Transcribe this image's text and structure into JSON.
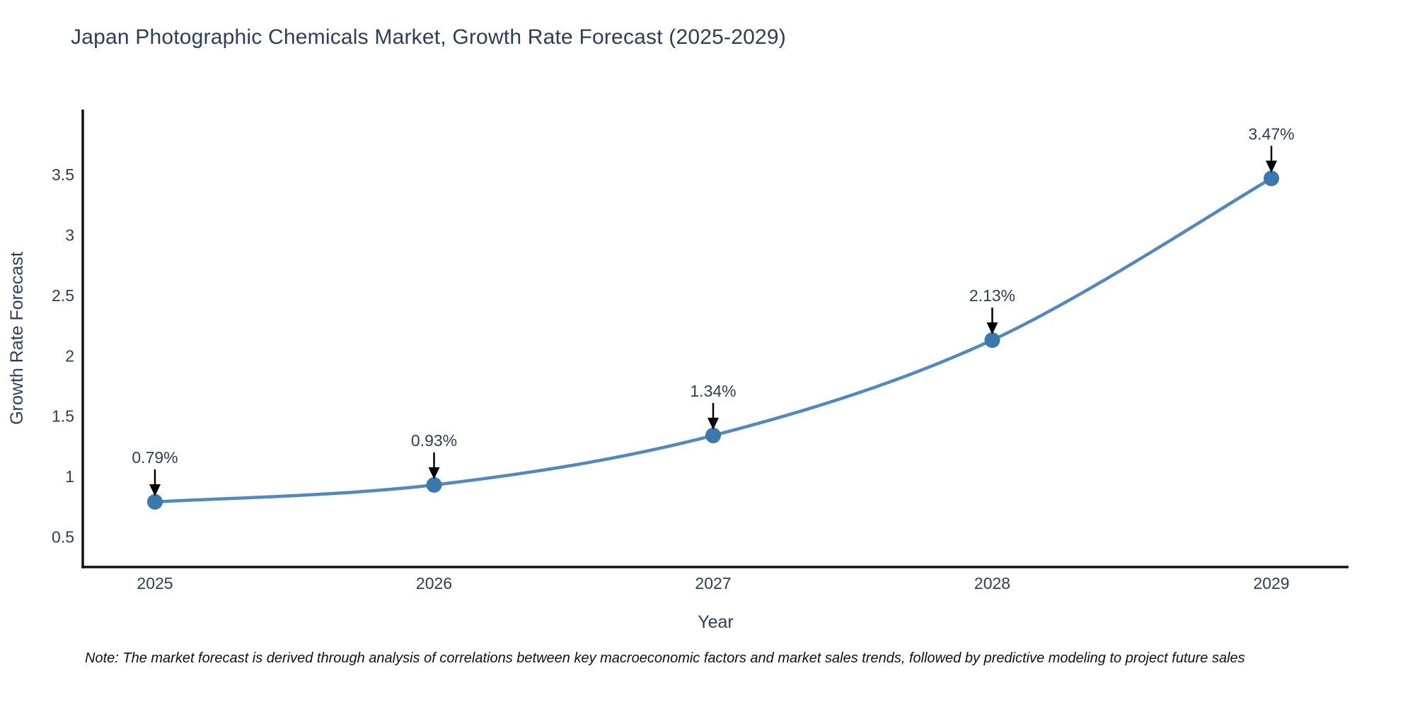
{
  "title": "Japan Photographic Chemicals Market, Growth Rate Forecast (2025-2029)",
  "note": "Note: The market forecast is derived through analysis of correlations between key macroeconomic factors and market sales trends, followed by predictive modeling to project future sales",
  "chart_data": {
    "type": "line",
    "title": "Japan Photographic Chemicals Market, Growth Rate Forecast (2025-2029)",
    "xlabel": "Year",
    "ylabel": "Growth Rate Forecast",
    "categories": [
      "2025",
      "2026",
      "2027",
      "2028",
      "2029"
    ],
    "series": [
      {
        "name": "Growth Rate Forecast",
        "values": [
          0.79,
          0.93,
          1.34,
          2.13,
          3.47
        ]
      }
    ],
    "point_labels": [
      "0.79%",
      "0.93%",
      "1.34%",
      "2.13%",
      "3.47%"
    ],
    "ytick_labels": [
      "0.5",
      "1",
      "1.5",
      "2",
      "2.5",
      "3",
      "3.5"
    ],
    "ytick_values": [
      0.5,
      1,
      1.5,
      2,
      2.5,
      3,
      3.5
    ],
    "ylim": [
      0.25,
      4.04
    ],
    "grid": false,
    "legend_position": "none",
    "line_shape": "spline",
    "annotation_arrows": true,
    "colors": {
      "line": "#4e8ac0",
      "marker": "#3a78ad",
      "text": "#2a3f5f",
      "axis": "#111111",
      "annotation_arrow": "#000000",
      "background": "#ffffff"
    }
  }
}
